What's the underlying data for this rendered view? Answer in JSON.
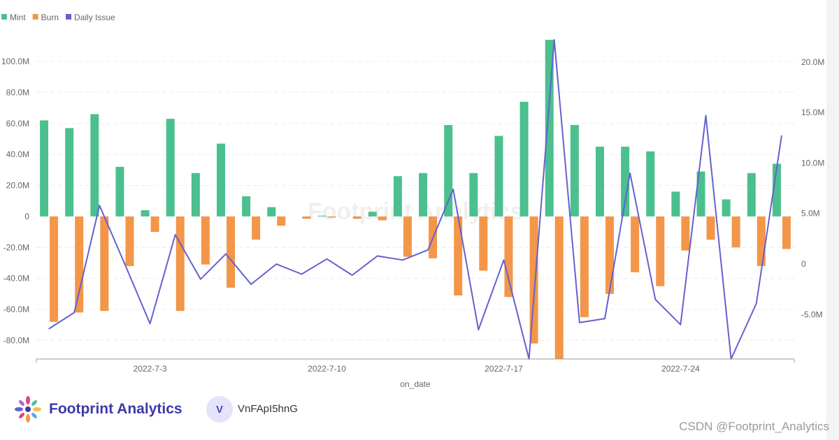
{
  "chart_data": {
    "type": "bar+line",
    "legend": [
      {
        "name": "Mint",
        "color": "#4cbf8f"
      },
      {
        "name": "Burn",
        "color": "#f39649"
      },
      {
        "name": "Daily Issue",
        "color": "#6461cf"
      }
    ],
    "xlabel": "on_date",
    "x_tick_labels": [
      {
        "index": 4,
        "label": "2022-7-3"
      },
      {
        "index": 11,
        "label": "2022-7-10"
      },
      {
        "index": 18,
        "label": "2022-7-17"
      },
      {
        "index": 25,
        "label": "2022-7-24"
      }
    ],
    "left_axis": {
      "ylim": [
        -92,
        114
      ],
      "ticks": [
        100,
        80,
        60,
        40,
        20,
        0,
        -20,
        -40,
        -60,
        -80
      ],
      "tick_labels": [
        "100.0M",
        "80.0M",
        "60.0M",
        "40.0M",
        "20.0M",
        "0",
        "-20.0M",
        "-40.0M",
        "-60.0M",
        "-80.0M"
      ]
    },
    "right_axis": {
      "ylim": [
        -9.4,
        22.2
      ],
      "ticks": [
        20,
        15,
        10,
        5,
        0,
        -5
      ],
      "tick_labels": [
        "20.0M",
        "15.0M",
        "10.0M",
        "5.0M",
        "0",
        "-5.0M"
      ]
    },
    "series": [
      {
        "name": "Mint",
        "axis": "left",
        "unit": "M",
        "values": [
          62,
          57,
          66,
          32,
          4,
          63,
          28,
          47,
          13,
          6,
          0,
          0.5,
          0,
          3,
          26,
          28,
          59,
          28,
          52,
          74,
          114,
          59,
          45,
          45,
          42,
          16,
          29,
          11,
          28,
          34
        ]
      },
      {
        "name": "Burn",
        "axis": "left",
        "unit": "M",
        "values": [
          -68,
          -62,
          -61,
          -32,
          -10,
          -61,
          -31,
          -46,
          -15,
          -6,
          -1.5,
          -0.7,
          -1.5,
          -2.5,
          -26,
          -27,
          -51,
          -35,
          -52,
          -82,
          -92,
          -65,
          -50,
          -36,
          -45,
          -22,
          -15,
          -20,
          -32,
          -21
        ]
      },
      {
        "name": "Daily Issue",
        "axis": "right",
        "unit": "M",
        "values": [
          -6.4,
          -4.8,
          5.8,
          0.0,
          -5.9,
          2.9,
          -1.5,
          1.0,
          -2.0,
          0.0,
          -1.0,
          0.5,
          -1.1,
          0.8,
          0.4,
          1.4,
          7.4,
          -6.5,
          0.4,
          -9.4,
          22.2,
          -5.8,
          -5.4,
          9.0,
          -3.5,
          -6.0,
          14.7,
          -9.4,
          -3.9,
          12.7
        ]
      }
    ]
  },
  "watermark": "Footprint Analytics",
  "footer": {
    "brand": "Footprint Analytics",
    "avatar_letter": "V",
    "user": "VnFApI5hnG",
    "credit": "CSDN @Footprint_Analytics"
  }
}
